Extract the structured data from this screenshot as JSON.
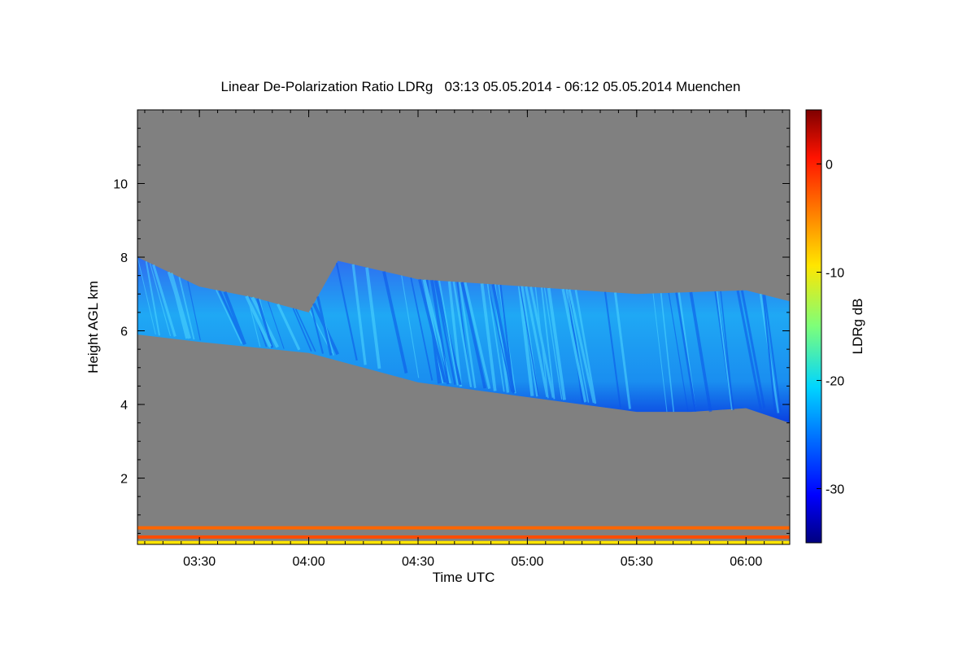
{
  "chart_data": {
    "type": "heatmap",
    "title": "Linear De-Polarization Ratio LDRg   03:13 05.05.2014 - 06:12 05.05.2014 Muenchen",
    "xlabel": "Time UTC",
    "ylabel": "Height AGL km",
    "xlim": [
      "03:13",
      "06:12"
    ],
    "ylim": [
      0.2,
      12.0
    ],
    "x_ticks": [
      "03:30",
      "04:00",
      "04:30",
      "05:00",
      "05:30",
      "06:00"
    ],
    "y_ticks": [
      2,
      4,
      6,
      8,
      10
    ],
    "colorbar": {
      "label": "LDRg dB",
      "range": [
        -35,
        5
      ],
      "ticks": [
        0,
        -10,
        -20,
        -30
      ],
      "colormap": "jet"
    },
    "background_color": "#808080",
    "cloud_layer": {
      "description": "cirrus layer with LDRg mostly -30 to -18 dB",
      "top_km": [
        {
          "t": "03:13",
          "h": 8.0
        },
        {
          "t": "03:30",
          "h": 7.2
        },
        {
          "t": "03:45",
          "h": 6.9
        },
        {
          "t": "04:00",
          "h": 6.5
        },
        {
          "t": "04:08",
          "h": 7.9
        },
        {
          "t": "04:30",
          "h": 7.4
        },
        {
          "t": "05:00",
          "h": 7.2
        },
        {
          "t": "05:30",
          "h": 7.0
        },
        {
          "t": "06:00",
          "h": 7.1
        },
        {
          "t": "06:12",
          "h": 6.8
        }
      ],
      "base_km": [
        {
          "t": "03:13",
          "h": 5.9
        },
        {
          "t": "03:30",
          "h": 5.7
        },
        {
          "t": "04:00",
          "h": 5.4
        },
        {
          "t": "04:30",
          "h": 4.6
        },
        {
          "t": "05:00",
          "h": 4.2
        },
        {
          "t": "05:30",
          "h": 3.8
        },
        {
          "t": "05:45",
          "h": 3.8
        },
        {
          "t": "06:00",
          "h": 3.9
        },
        {
          "t": "06:12",
          "h": 3.5
        }
      ]
    },
    "near_ground_bands": [
      {
        "height_km": 0.25,
        "ldr_db": -9
      },
      {
        "height_km": 0.4,
        "ldr_db": -3
      },
      {
        "height_km": 0.65,
        "ldr_db": -4
      }
    ]
  }
}
